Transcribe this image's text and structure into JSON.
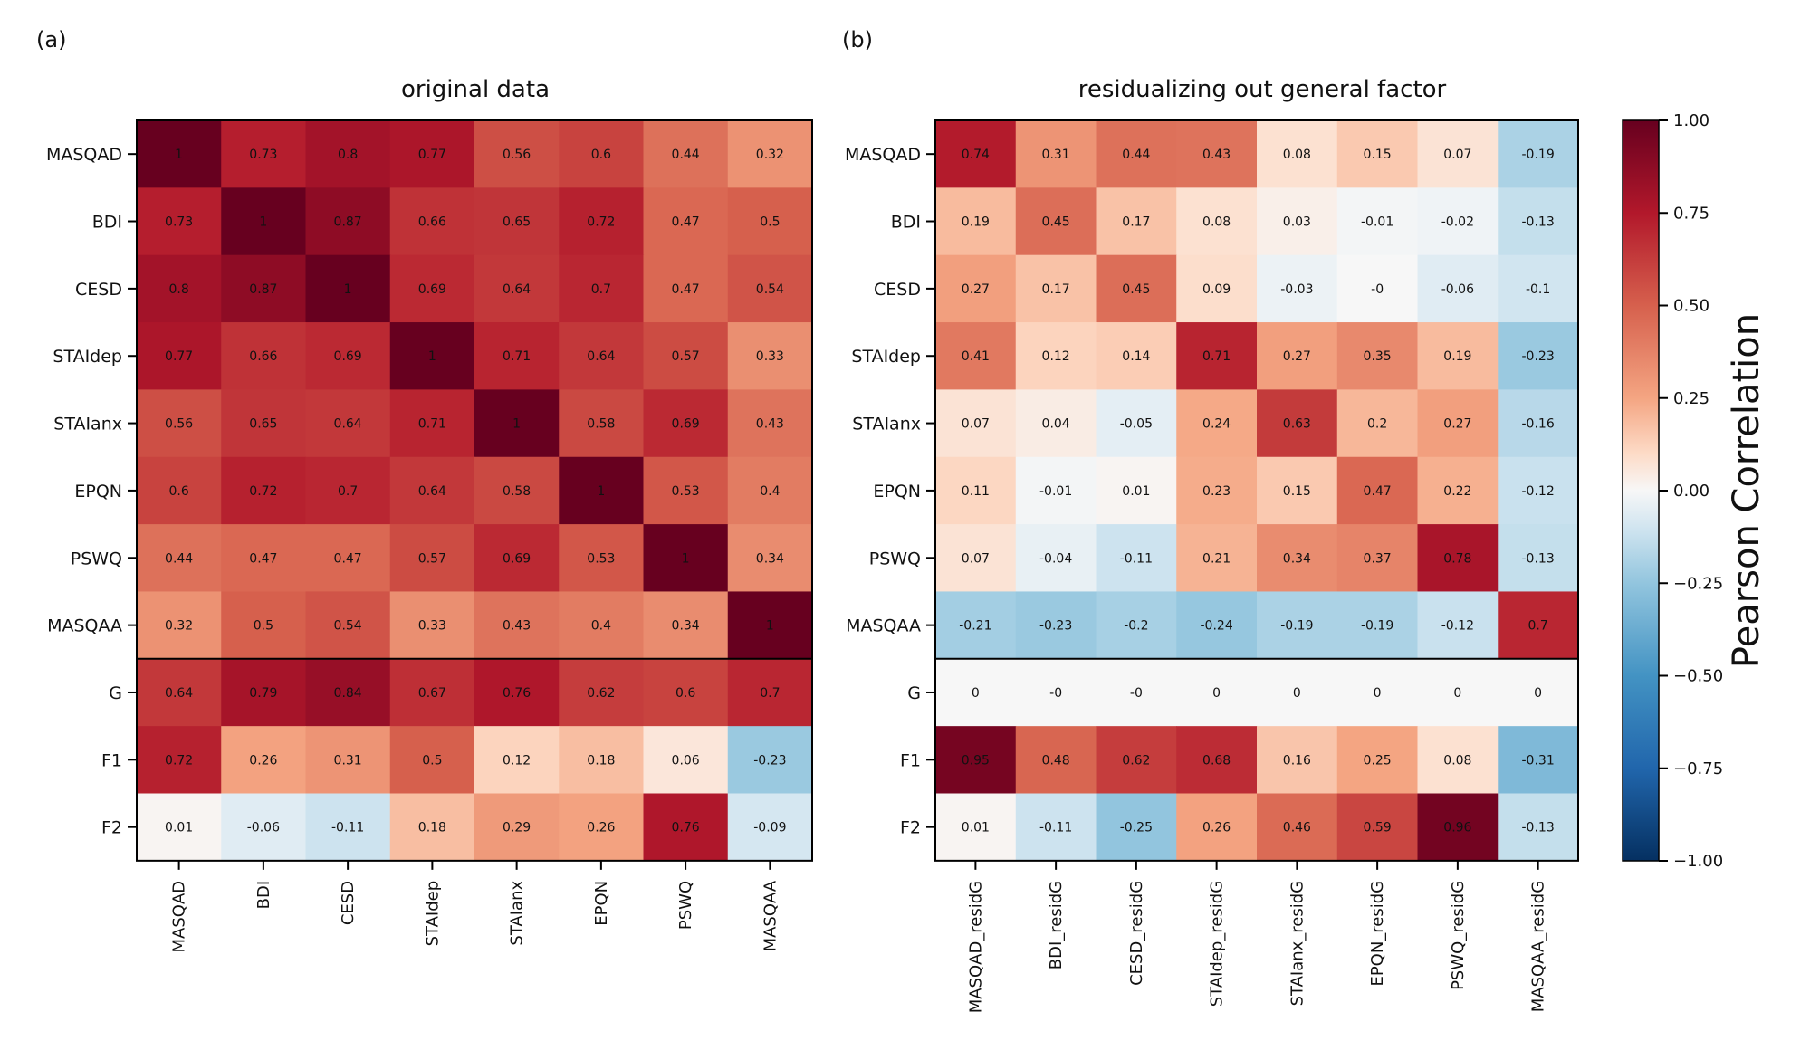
{
  "chart_data": [
    {
      "type": "heatmap",
      "panel_label": "(a)",
      "title": "original data",
      "row_labels": [
        "MASQAD",
        "BDI",
        "CESD",
        "STAIdep",
        "STAIanx",
        "EPQN",
        "PSWQ",
        "MASQAA",
        "G",
        "F1",
        "F2"
      ],
      "col_labels": [
        "MASQAD",
        "BDI",
        "CESD",
        "STAIdep",
        "STAIanx",
        "EPQN",
        "PSWQ",
        "MASQAA"
      ],
      "values": [
        [
          "1",
          "0.73",
          "0.8",
          "0.77",
          "0.56",
          "0.6",
          "0.44",
          "0.32"
        ],
        [
          "0.73",
          "1",
          "0.87",
          "0.66",
          "0.65",
          "0.72",
          "0.47",
          "0.5"
        ],
        [
          "0.8",
          "0.87",
          "1",
          "0.69",
          "0.64",
          "0.7",
          "0.47",
          "0.54"
        ],
        [
          "0.77",
          "0.66",
          "0.69",
          "1",
          "0.71",
          "0.64",
          "0.57",
          "0.33"
        ],
        [
          "0.56",
          "0.65",
          "0.64",
          "0.71",
          "1",
          "0.58",
          "0.69",
          "0.43"
        ],
        [
          "0.6",
          "0.72",
          "0.7",
          "0.64",
          "0.58",
          "1",
          "0.53",
          "0.4"
        ],
        [
          "0.44",
          "0.47",
          "0.47",
          "0.57",
          "0.69",
          "0.53",
          "1",
          "0.34"
        ],
        [
          "0.32",
          "0.5",
          "0.54",
          "0.33",
          "0.43",
          "0.4",
          "0.34",
          "1"
        ],
        [
          "0.64",
          "0.79",
          "0.84",
          "0.67",
          "0.76",
          "0.62",
          "0.6",
          "0.7"
        ],
        [
          "0.72",
          "0.26",
          "0.31",
          "0.5",
          "0.12",
          "0.18",
          "0.06",
          "-0.23"
        ],
        [
          "0.01",
          "-0.06",
          "-0.11",
          "0.18",
          "0.29",
          "0.26",
          "0.76",
          "-0.09"
        ]
      ],
      "separator_after_row": 8
    },
    {
      "type": "heatmap",
      "panel_label": "(b)",
      "title": "residualizing out general factor",
      "row_labels": [
        "MASQAD",
        "BDI",
        "CESD",
        "STAIdep",
        "STAIanx",
        "EPQN",
        "PSWQ",
        "MASQAA",
        "G",
        "F1",
        "F2"
      ],
      "col_labels": [
        "MASQAD_residG",
        "BDI_residG",
        "CESD_residG",
        "STAIdep_residG",
        "STAIanx_residG",
        "EPQN_residG",
        "PSWQ_residG",
        "MASQAA_residG"
      ],
      "values": [
        [
          "0.74",
          "0.31",
          "0.44",
          "0.43",
          "0.08",
          "0.15",
          "0.07",
          "-0.19"
        ],
        [
          "0.19",
          "0.45",
          "0.17",
          "0.08",
          "0.03",
          "-0.01",
          "-0.02",
          "-0.13"
        ],
        [
          "0.27",
          "0.17",
          "0.45",
          "0.09",
          "-0.03",
          "-0",
          "-0.06",
          "-0.1"
        ],
        [
          "0.41",
          "0.12",
          "0.14",
          "0.71",
          "0.27",
          "0.35",
          "0.19",
          "-0.23"
        ],
        [
          "0.07",
          "0.04",
          "-0.05",
          "0.24",
          "0.63",
          "0.2",
          "0.27",
          "-0.16"
        ],
        [
          "0.11",
          "-0.01",
          "0.01",
          "0.23",
          "0.15",
          "0.47",
          "0.22",
          "-0.12"
        ],
        [
          "0.07",
          "-0.04",
          "-0.11",
          "0.21",
          "0.34",
          "0.37",
          "0.78",
          "-0.13"
        ],
        [
          "-0.21",
          "-0.23",
          "-0.2",
          "-0.24",
          "-0.19",
          "-0.19",
          "-0.12",
          "0.7"
        ],
        [
          "0",
          "-0",
          "-0",
          "0",
          "0",
          "0",
          "0",
          "0"
        ],
        [
          "0.95",
          "0.48",
          "0.62",
          "0.68",
          "0.16",
          "0.25",
          "0.08",
          "-0.31"
        ],
        [
          "0.01",
          "-0.11",
          "-0.25",
          "0.26",
          "0.46",
          "0.59",
          "0.96",
          "-0.13"
        ]
      ],
      "separator_after_row": 8
    }
  ],
  "colorbar": {
    "label": "Pearson Correlation",
    "range": [
      -1,
      1
    ],
    "ticks": [
      "1.00",
      "0.75",
      "0.50",
      "0.25",
      "0.00",
      "−0.25",
      "−0.50",
      "−0.75",
      "−1.00"
    ],
    "tick_values": [
      1,
      0.75,
      0.5,
      0.25,
      0,
      -0.25,
      -0.5,
      -0.75,
      -1
    ],
    "colormap": "RdBu_r"
  }
}
